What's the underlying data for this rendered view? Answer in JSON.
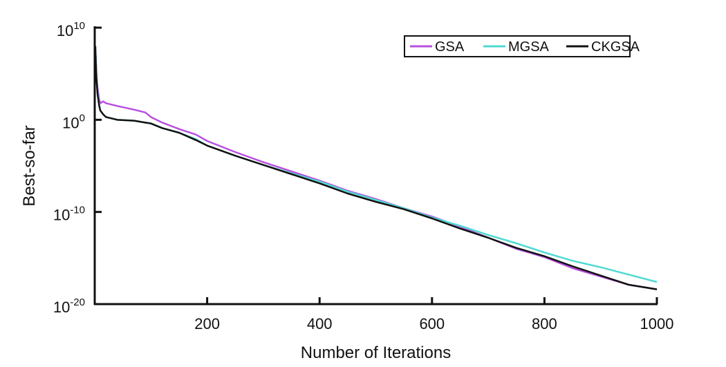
{
  "chart_data": {
    "type": "line",
    "title": "",
    "xlabel": "Number of Iterations",
    "ylabel": "Best-so-far",
    "xlim": [
      0,
      1000
    ],
    "ylim_log10": [
      -20,
      10
    ],
    "y_scale": "log",
    "x_ticks": [
      {
        "value": 200,
        "label": "200"
      },
      {
        "value": 400,
        "label": "400"
      },
      {
        "value": 600,
        "label": "600"
      },
      {
        "value": 800,
        "label": "800"
      },
      {
        "value": 1000,
        "label": "1000"
      }
    ],
    "y_ticks": [
      {
        "exp": 10,
        "base": "10",
        "sup": "10"
      },
      {
        "exp": 0,
        "base": "10",
        "sup": "0"
      },
      {
        "exp": -10,
        "base": "10",
        "sup": "-10"
      },
      {
        "exp": -20,
        "base": "10",
        "sup": "-20"
      }
    ],
    "grid": false,
    "legend_position": "top-right",
    "series": [
      {
        "name": "GSA",
        "color": "#b84fe0",
        "x": [
          1,
          3,
          5,
          8,
          10,
          15,
          20,
          40,
          70,
          90,
          100,
          120,
          150,
          180,
          200,
          250,
          300,
          350,
          400,
          450,
          500,
          550,
          600,
          650,
          700,
          750,
          800,
          850,
          900,
          950,
          1000
        ],
        "log10y": [
          8,
          5,
          3.5,
          2.2,
          1.8,
          2.0,
          1.8,
          1.5,
          1.1,
          0.8,
          0.3,
          -0.3,
          -1.0,
          -1.6,
          -2.3,
          -3.5,
          -4.6,
          -5.6,
          -6.6,
          -7.7,
          -8.6,
          -9.6,
          -10.5,
          -11.6,
          -12.8,
          -14.0,
          -14.9,
          -16.1,
          -17.0,
          -17.9,
          -18.4
        ]
      },
      {
        "name": "MGSA",
        "color": "#4fd9d2",
        "x": [
          1,
          3,
          5,
          8,
          10,
          15,
          20,
          40,
          70,
          90,
          100,
          120,
          150,
          180,
          200,
          250,
          300,
          350,
          400,
          450,
          500,
          550,
          600,
          650,
          700,
          750,
          800,
          850,
          900,
          950,
          1000
        ],
        "log10y": [
          8,
          4.8,
          3.0,
          1.6,
          1.0,
          0.6,
          0.3,
          0,
          -0.1,
          -0.3,
          -0.4,
          -0.9,
          -1.4,
          -2.1,
          -2.8,
          -3.9,
          -4.9,
          -5.8,
          -6.7,
          -7.8,
          -8.7,
          -9.6,
          -10.6,
          -11.5,
          -12.5,
          -13.4,
          -14.4,
          -15.3,
          -16.0,
          -16.8,
          -17.6
        ]
      },
      {
        "name": "CKGSA",
        "color": "#111111",
        "x": [
          1,
          3,
          5,
          8,
          10,
          15,
          20,
          40,
          70,
          90,
          100,
          120,
          150,
          180,
          200,
          250,
          300,
          350,
          400,
          450,
          500,
          550,
          600,
          650,
          700,
          750,
          800,
          850,
          900,
          950,
          1000
        ],
        "log10y": [
          8,
          4.5,
          2.8,
          1.5,
          1.0,
          0.6,
          0.3,
          0,
          -0.1,
          -0.3,
          -0.4,
          -0.9,
          -1.4,
          -2.2,
          -2.8,
          -3.9,
          -4.9,
          -5.9,
          -6.9,
          -8.0,
          -8.9,
          -9.7,
          -10.7,
          -11.8,
          -12.8,
          -13.9,
          -14.8,
          -15.9,
          -16.9,
          -17.9,
          -18.4
        ]
      }
    ]
  }
}
